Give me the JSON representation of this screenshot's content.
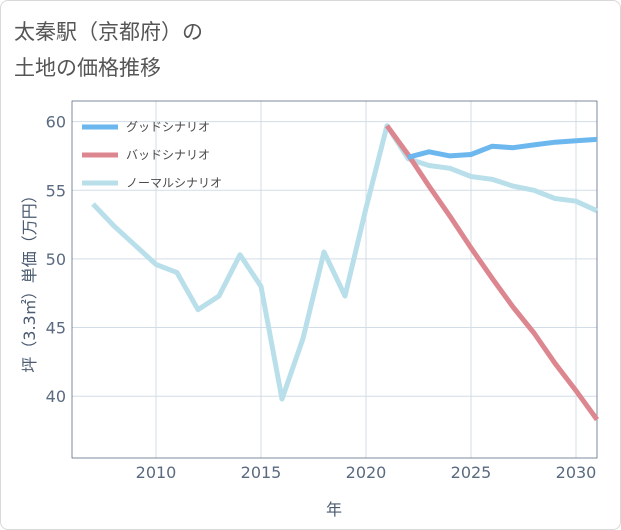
{
  "page": {
    "title_line1": "太秦駅（京都府）の",
    "title_line2": "土地の価格推移"
  },
  "chart_data": {
    "type": "line",
    "title": "太秦駅（京都府）の土地の価格推移",
    "xlabel": "年",
    "ylabel": "坪（3.3㎡）単価（万円）",
    "xlim": [
      2006,
      2031
    ],
    "ylim": [
      35.5,
      61.5
    ],
    "x_ticks": [
      2010,
      2015,
      2020,
      2025,
      2030
    ],
    "y_ticks": [
      40,
      45,
      50,
      55,
      60
    ],
    "grid": true,
    "legend_position": "top-left",
    "series": [
      {
        "name": "グッドシナリオ",
        "color": "#6cb7ee",
        "x": [
          2022,
          2023,
          2024,
          2025,
          2026,
          2027,
          2028,
          2029,
          2030,
          2031
        ],
        "y": [
          57.4,
          57.8,
          57.5,
          57.6,
          58.2,
          58.1,
          58.3,
          58.5,
          58.6,
          58.7
        ]
      },
      {
        "name": "バッドシナリオ",
        "color": "#dc868f",
        "x": [
          2021,
          2022,
          2023,
          2024,
          2025,
          2026,
          2027,
          2028,
          2029,
          2030,
          2031
        ],
        "y": [
          59.7,
          57.6,
          55.3,
          53.1,
          50.8,
          48.6,
          46.5,
          44.6,
          42.4,
          40.4,
          38.3
        ]
      },
      {
        "name": "ノーマルシナリオ",
        "color": "#b9dfea",
        "x": [
          2007,
          2008,
          2009,
          2010,
          2011,
          2012,
          2013,
          2014,
          2015,
          2016,
          2017,
          2018,
          2019,
          2020,
          2021,
          2022,
          2023,
          2024,
          2025,
          2026,
          2027,
          2028,
          2029,
          2030,
          2031
        ],
        "y": [
          54.0,
          52.4,
          51.0,
          49.6,
          49.0,
          46.3,
          47.3,
          50.3,
          48.0,
          39.8,
          44.2,
          50.5,
          47.3,
          53.7,
          59.7,
          57.3,
          56.8,
          56.6,
          56.0,
          55.8,
          55.3,
          55.0,
          54.4,
          54.2,
          53.5
        ]
      }
    ]
  }
}
